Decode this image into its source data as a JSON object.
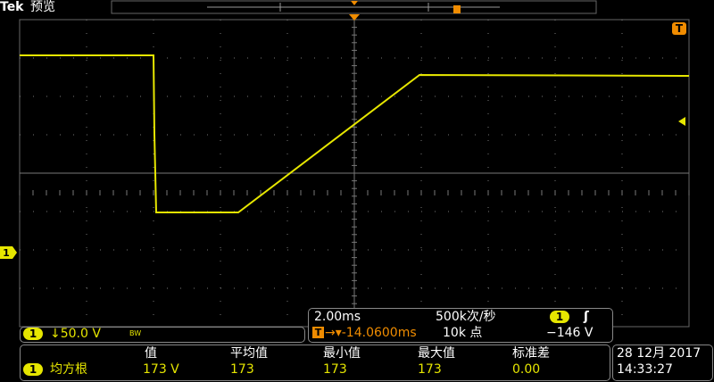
{
  "header": {
    "brand": "Tek",
    "mode": "预览"
  },
  "channel": {
    "number": "1",
    "scale": "↓50.0 V",
    "bandwidth": "BW"
  },
  "timebase": {
    "scale": "2.00ms",
    "sample_rate": "500k次/秒",
    "trigger_source": "1",
    "trigger_level": "−146 V",
    "position": "→▾-14.0600ms",
    "record_length": "10k 点"
  },
  "measurements": {
    "columns": [
      "值",
      "平均值",
      "最小值",
      "最大值",
      "标准差"
    ],
    "rows": [
      {
        "source": "1",
        "name": "均方根",
        "cells": [
          "173 V",
          "173",
          "173",
          "173",
          "0.00"
        ]
      }
    ]
  },
  "status": {
    "date": "28 12月 2017",
    "time": "14:33:27"
  }
}
